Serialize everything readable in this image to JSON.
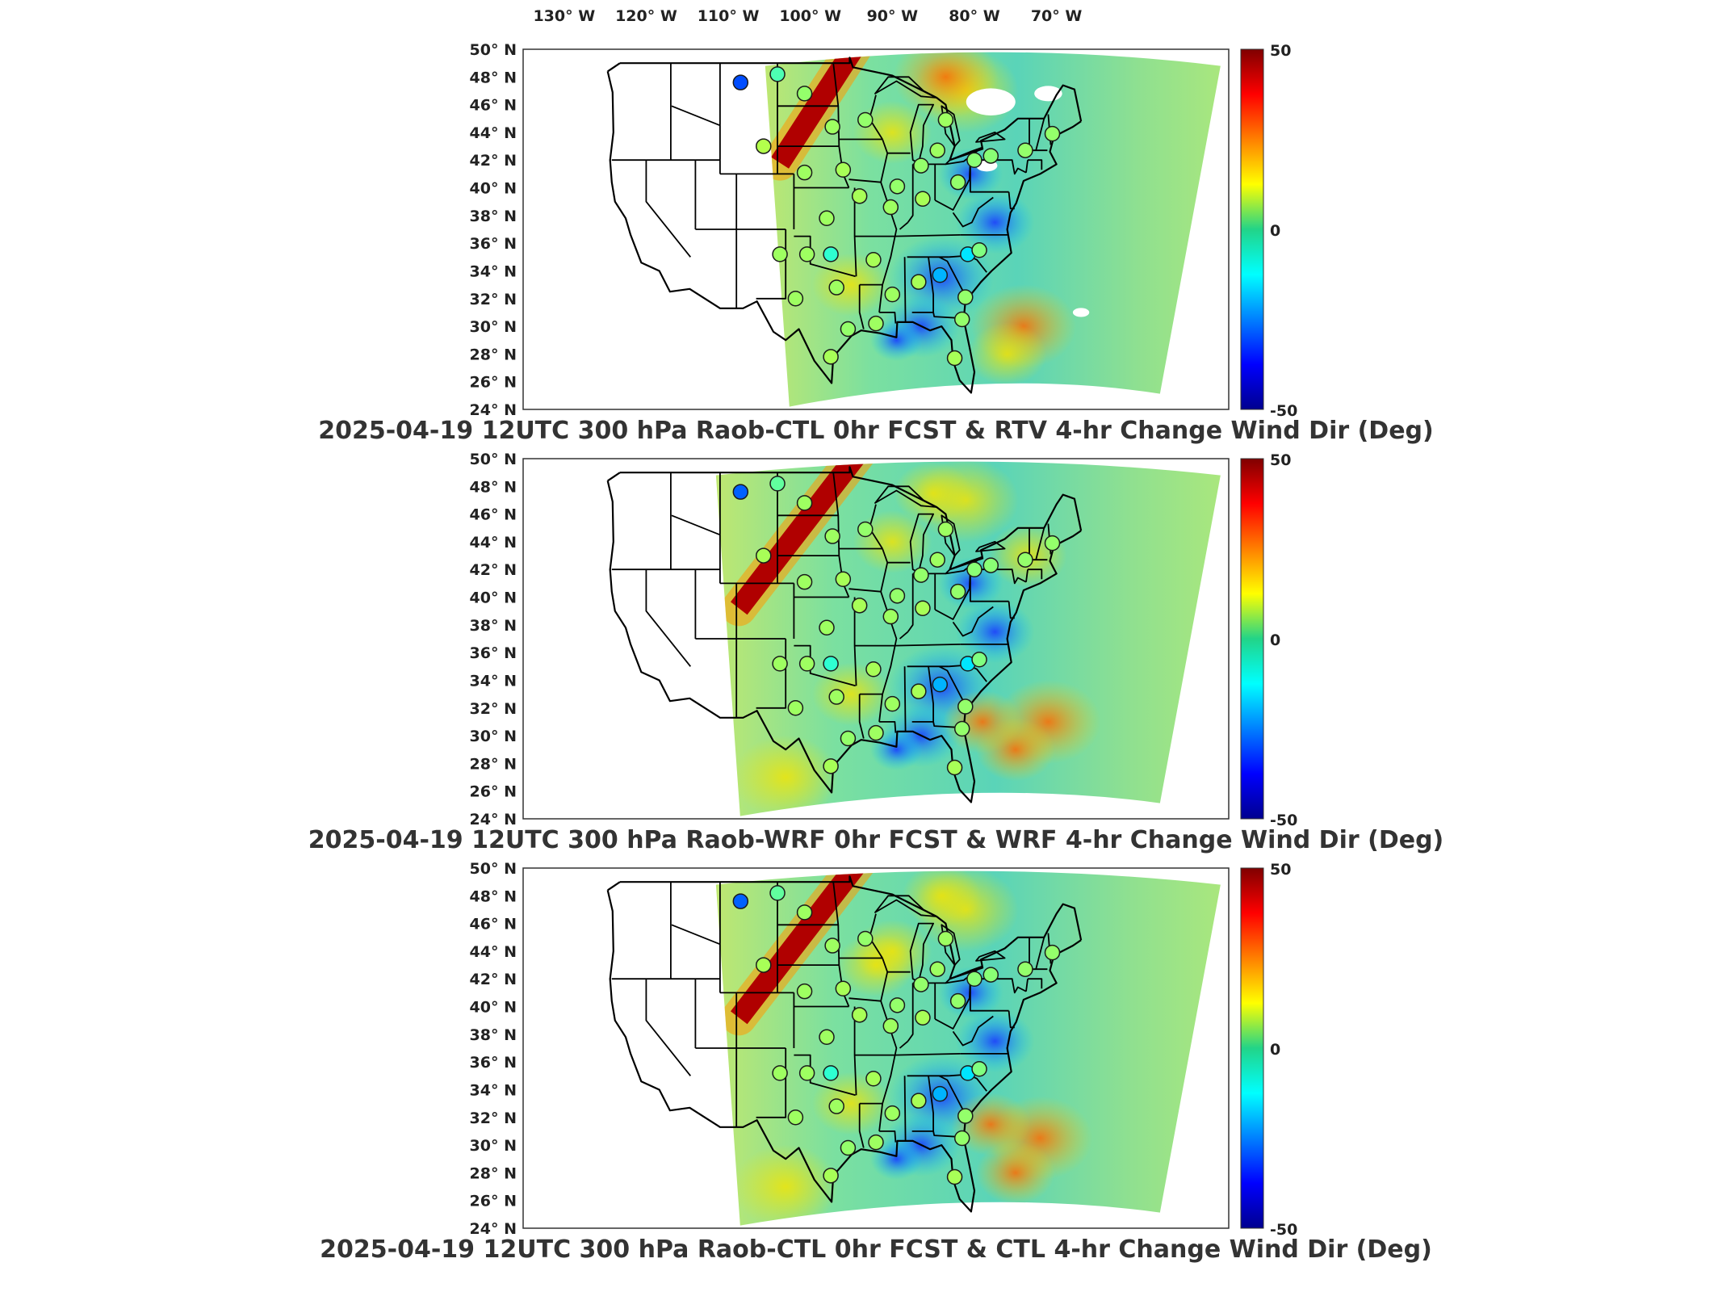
{
  "top_axis_lon_labels": [
    "130° W",
    "120° W",
    "110° W",
    "100° W",
    "90° W",
    "80° W",
    "70° W"
  ],
  "lat_labels": [
    "50° N",
    "48° N",
    "46° N",
    "44° N",
    "42° N",
    "40° N",
    "38° N",
    "36° N",
    "34° N",
    "32° N",
    "30° N",
    "28° N",
    "26° N",
    "24° N"
  ],
  "colorbar": {
    "max_label": "50",
    "mid_label": "0",
    "min_label": "-50",
    "range": [
      -50,
      50
    ],
    "colormap": "jet"
  },
  "colors": {
    "low": "#00008f",
    "mid": "#22d488",
    "high": "#8b0000",
    "state_lines": "#000000"
  },
  "panels": [
    {
      "title": "2025-04-19 12UTC 300 hPa Raob-CTL 0hr FCST & RTV 4-hr Change Wind Dir (Deg)"
    },
    {
      "title": "2025-04-19 12UTC 300 hPa Raob-WRF 0hr FCST & WRF 4-hr Change Wind Dir (Deg)"
    },
    {
      "title": "2025-04-19 12UTC 300 hPa Raob-CTL 0hr FCST & CTL 4-hr Change Wind Dir (Deg)"
    }
  ],
  "raob_stations": [
    {
      "lon": -108.5,
      "lat": 47.6,
      "values": [
        -30,
        -28,
        -28
      ]
    },
    {
      "lon": -104.0,
      "lat": 48.2,
      "values": [
        -5,
        -3,
        -3
      ]
    },
    {
      "lon": -100.7,
      "lat": 46.8,
      "values": [
        2,
        3,
        3
      ]
    },
    {
      "lon": -105.7,
      "lat": 43.0,
      "values": [
        5,
        4,
        4
      ]
    },
    {
      "lon": -97.3,
      "lat": 44.4,
      "values": [
        3,
        3,
        3
      ]
    },
    {
      "lon": -93.3,
      "lat": 44.9,
      "values": [
        2,
        2,
        2
      ]
    },
    {
      "lon": -100.7,
      "lat": 41.1,
      "values": [
        3,
        3,
        3
      ]
    },
    {
      "lon": -96.0,
      "lat": 41.3,
      "values": [
        4,
        4,
        4
      ]
    },
    {
      "lon": -89.4,
      "lat": 40.1,
      "values": [
        2,
        2,
        2
      ]
    },
    {
      "lon": -86.5,
      "lat": 41.6,
      "values": [
        2,
        2,
        2
      ]
    },
    {
      "lon": -84.5,
      "lat": 42.7,
      "values": [
        3,
        3,
        3
      ]
    },
    {
      "lon": -83.5,
      "lat": 44.9,
      "values": [
        3,
        3,
        3
      ]
    },
    {
      "lon": -98.0,
      "lat": 37.8,
      "values": [
        3,
        3,
        3
      ]
    },
    {
      "lon": -94.0,
      "lat": 39.4,
      "values": [
        4,
        4,
        4
      ]
    },
    {
      "lon": -90.2,
      "lat": 38.6,
      "values": [
        3,
        3,
        3
      ]
    },
    {
      "lon": -86.3,
      "lat": 39.2,
      "values": [
        4,
        4,
        4
      ]
    },
    {
      "lon": -82.0,
      "lat": 40.4,
      "values": [
        2,
        2,
        2
      ]
    },
    {
      "lon": -80.0,
      "lat": 42.0,
      "values": [
        1,
        1,
        1
      ]
    },
    {
      "lon": -78.0,
      "lat": 42.3,
      "values": [
        1,
        1,
        1
      ]
    },
    {
      "lon": -73.8,
      "lat": 42.7,
      "values": [
        2,
        2,
        2
      ]
    },
    {
      "lon": -70.5,
      "lat": 43.9,
      "values": [
        2,
        2,
        2
      ]
    },
    {
      "lon": -103.7,
      "lat": 35.2,
      "values": [
        3,
        3,
        3
      ]
    },
    {
      "lon": -101.8,
      "lat": 32.0,
      "values": [
        3,
        3,
        3
      ]
    },
    {
      "lon": -97.5,
      "lat": 35.2,
      "values": [
        -8,
        -8,
        -8
      ]
    },
    {
      "lon": -100.4,
      "lat": 35.2,
      "values": [
        3,
        3,
        3
      ]
    },
    {
      "lon": -96.8,
      "lat": 32.8,
      "values": [
        3,
        3,
        3
      ]
    },
    {
      "lon": -92.3,
      "lat": 34.8,
      "values": [
        4,
        4,
        4
      ]
    },
    {
      "lon": -90.0,
      "lat": 32.3,
      "values": [
        3,
        3,
        3
      ]
    },
    {
      "lon": -86.8,
      "lat": 33.2,
      "values": [
        4,
        4,
        4
      ]
    },
    {
      "lon": -84.2,
      "lat": 33.7,
      "values": [
        -20,
        -20,
        -20
      ]
    },
    {
      "lon": -80.8,
      "lat": 35.2,
      "values": [
        -15,
        -15,
        -15
      ]
    },
    {
      "lon": -81.1,
      "lat": 32.1,
      "values": [
        2,
        2,
        2
      ]
    },
    {
      "lon": -79.4,
      "lat": 35.5,
      "values": [
        0,
        0,
        0
      ]
    },
    {
      "lon": -95.4,
      "lat": 29.8,
      "values": [
        2,
        2,
        2
      ]
    },
    {
      "lon": -97.5,
      "lat": 27.8,
      "values": [
        4,
        4,
        4
      ]
    },
    {
      "lon": -81.5,
      "lat": 30.5,
      "values": [
        2,
        2,
        2
      ]
    },
    {
      "lon": -82.4,
      "lat": 27.7,
      "values": [
        4,
        4,
        4
      ]
    },
    {
      "lon": -92.0,
      "lat": 30.2,
      "values": [
        3,
        3,
        3
      ]
    }
  ]
}
